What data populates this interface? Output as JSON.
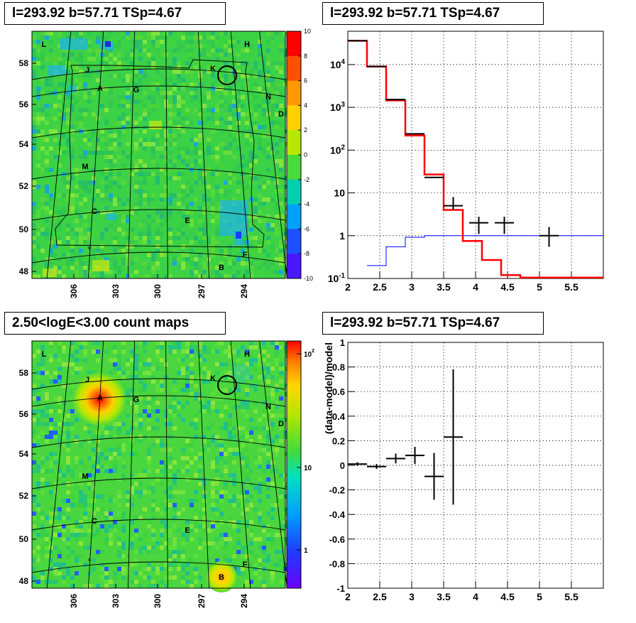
{
  "panels": {
    "tl_title": "l=293.92 b=57.71 TSp=4.67",
    "tr_title": "l=293.92 b=57.71 TSp=4.67",
    "bl_title": "2.50<logE<3.00 count maps",
    "br_title": "l=293.92 b=57.71 TSp=4.67"
  },
  "colors": {
    "data": "#000000",
    "model": "#ff0000",
    "source": "#0000ff",
    "grid": "#000000"
  },
  "chart_data": [
    {
      "type": "heatmap",
      "name": "ts-map",
      "x_ticks": [
        "306",
        "303",
        "300",
        "297",
        "294"
      ],
      "y_ticks": [
        "48",
        "50",
        "52",
        "54",
        "56",
        "58"
      ],
      "colorbar_ticks": [
        "10",
        "8",
        "6",
        "4",
        "2",
        "0",
        "-2",
        "-4",
        "-6",
        "-8",
        "-10"
      ],
      "colorbar_range": [
        -10,
        10
      ],
      "source_labels": [
        "L",
        "H",
        "J",
        "K",
        "A",
        "G",
        "N",
        "D",
        "M",
        "C",
        "E",
        "F",
        "B"
      ]
    },
    {
      "type": "line",
      "name": "spectrum",
      "yscale": "log",
      "xlim": [
        2,
        6
      ],
      "ylim": [
        0.1,
        60000
      ],
      "x_ticks": [
        "2",
        "2.5",
        "3",
        "3.5",
        "4",
        "4.5",
        "5",
        "5.5"
      ],
      "y_ticks": [
        "10^-1",
        "1",
        "10",
        "10^2",
        "10^3",
        "10^4"
      ],
      "data": [
        {
          "x": 2.15,
          "y": 36000
        },
        {
          "x": 2.45,
          "y": 9000
        },
        {
          "x": 2.75,
          "y": 1520
        },
        {
          "x": 3.05,
          "y": 240
        },
        {
          "x": 3.35,
          "y": 23
        },
        {
          "x": 3.65,
          "y": 5
        },
        {
          "x": 4.05,
          "y": 2
        },
        {
          "x": 4.45,
          "y": 2
        },
        {
          "x": 5.15,
          "y": 1
        }
      ],
      "model_steps": [
        {
          "x0": 2.0,
          "x1": 2.3,
          "y": 36000
        },
        {
          "x0": 2.3,
          "x1": 2.6,
          "y": 9000
        },
        {
          "x0": 2.6,
          "x1": 2.9,
          "y": 1450
        },
        {
          "x0": 2.9,
          "x1": 3.2,
          "y": 220
        },
        {
          "x0": 3.2,
          "x1": 3.5,
          "y": 27
        },
        {
          "x0": 3.5,
          "x1": 3.8,
          "y": 4
        },
        {
          "x0": 3.8,
          "x1": 4.1,
          "y": 0.75
        },
        {
          "x0": 4.1,
          "x1": 4.4,
          "y": 0.27
        },
        {
          "x0": 4.4,
          "x1": 4.7,
          "y": 0.12
        },
        {
          "x0": 4.7,
          "x1": 6.0,
          "y": 0.105
        }
      ],
      "source_steps": [
        {
          "x0": 2.3,
          "x1": 2.6,
          "y": 0.2
        },
        {
          "x0": 2.6,
          "x1": 2.9,
          "y": 0.55
        },
        {
          "x0": 2.9,
          "x1": 3.2,
          "y": 0.92
        },
        {
          "x0": 3.2,
          "x1": 6.0,
          "y": 1.0
        }
      ]
    },
    {
      "type": "heatmap",
      "name": "count-map",
      "x_ticks": [
        "306",
        "303",
        "300",
        "297",
        "294"
      ],
      "y_ticks": [
        "48",
        "50",
        "52",
        "54",
        "56",
        "58"
      ],
      "colorbar_ticks": [
        "10^2",
        "10",
        "1"
      ],
      "colorbar_scale": "log",
      "source_labels": [
        "L",
        "H",
        "J",
        "K",
        "A",
        "G",
        "N",
        "D",
        "M",
        "C",
        "E",
        "F",
        "B"
      ]
    },
    {
      "type": "scatter",
      "name": "residuals",
      "ylabel": "(data-model)/model",
      "xlim": [
        2,
        6
      ],
      "ylim": [
        -1,
        1
      ],
      "x_ticks": [
        "2",
        "2.5",
        "3",
        "3.5",
        "4",
        "4.5",
        "5",
        "5.5"
      ],
      "y_ticks": [
        "1",
        "0.8",
        "0.6",
        "0.4",
        "0.2",
        "0",
        "-0.2",
        "-0.4",
        "-0.6",
        "-0.8",
        "-1"
      ],
      "points": [
        {
          "x": 2.15,
          "y": 0.01,
          "xerr": 0.15,
          "yerr": 0.015
        },
        {
          "x": 2.45,
          "y": -0.01,
          "xerr": 0.15,
          "yerr": 0.02
        },
        {
          "x": 2.75,
          "y": 0.055,
          "xerr": 0.15,
          "yerr": 0.04
        },
        {
          "x": 3.05,
          "y": 0.08,
          "xerr": 0.15,
          "yerr": 0.07
        },
        {
          "x": 3.35,
          "y": -0.09,
          "xerr": 0.15,
          "yerr": 0.19
        },
        {
          "x": 3.65,
          "y": 0.23,
          "xerr": 0.15,
          "yerr": 0.55
        }
      ]
    }
  ]
}
